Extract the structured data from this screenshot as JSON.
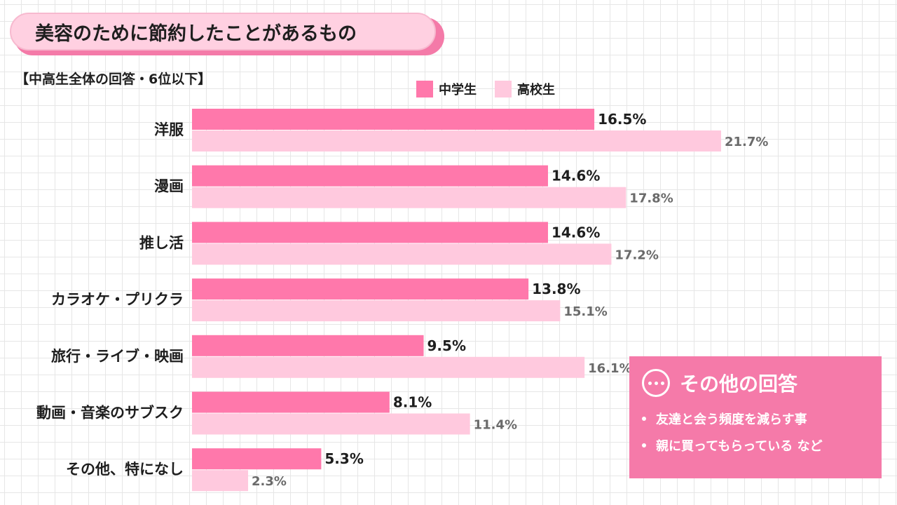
{
  "title": "美容のために節約したことがあるもの",
  "subtitle": "【中高生全体の回答・6位以下】",
  "colors": {
    "junior_high": "#ff78ab",
    "high_school": "#ffc9de",
    "accent": "#f57aa9"
  },
  "legend": [
    "中学生",
    "高校生"
  ],
  "chart_data": {
    "type": "bar",
    "orientation": "horizontal",
    "categories": [
      "洋服",
      "漫画",
      "推し活",
      "カラオケ・プリクラ",
      "旅行・ライブ・映画",
      "動画・音楽のサブスク",
      "その他、特になし"
    ],
    "series": [
      {
        "name": "中学生",
        "values": [
          16.5,
          14.6,
          14.6,
          13.8,
          9.5,
          8.1,
          5.3
        ],
        "labels": [
          "16.5%",
          "14.6%",
          "14.6%",
          "13.8%",
          "9.5%",
          "8.1%",
          "5.3%"
        ]
      },
      {
        "name": "高校生",
        "values": [
          21.7,
          17.8,
          17.2,
          15.1,
          16.1,
          11.4,
          2.3
        ],
        "labels": [
          "21.7%",
          "17.8%",
          "17.2%",
          "15.1%",
          "16.1%",
          "11.4%",
          "2.3%"
        ]
      }
    ],
    "xlim": [
      0,
      21.7
    ],
    "grid": true,
    "legend_position": "top-right"
  },
  "other_answers": {
    "title": "その他の回答",
    "icon": "ellipsis-icon",
    "items": [
      "友達と会う頻度を減らす事",
      "親に買ってもらっている など"
    ]
  }
}
